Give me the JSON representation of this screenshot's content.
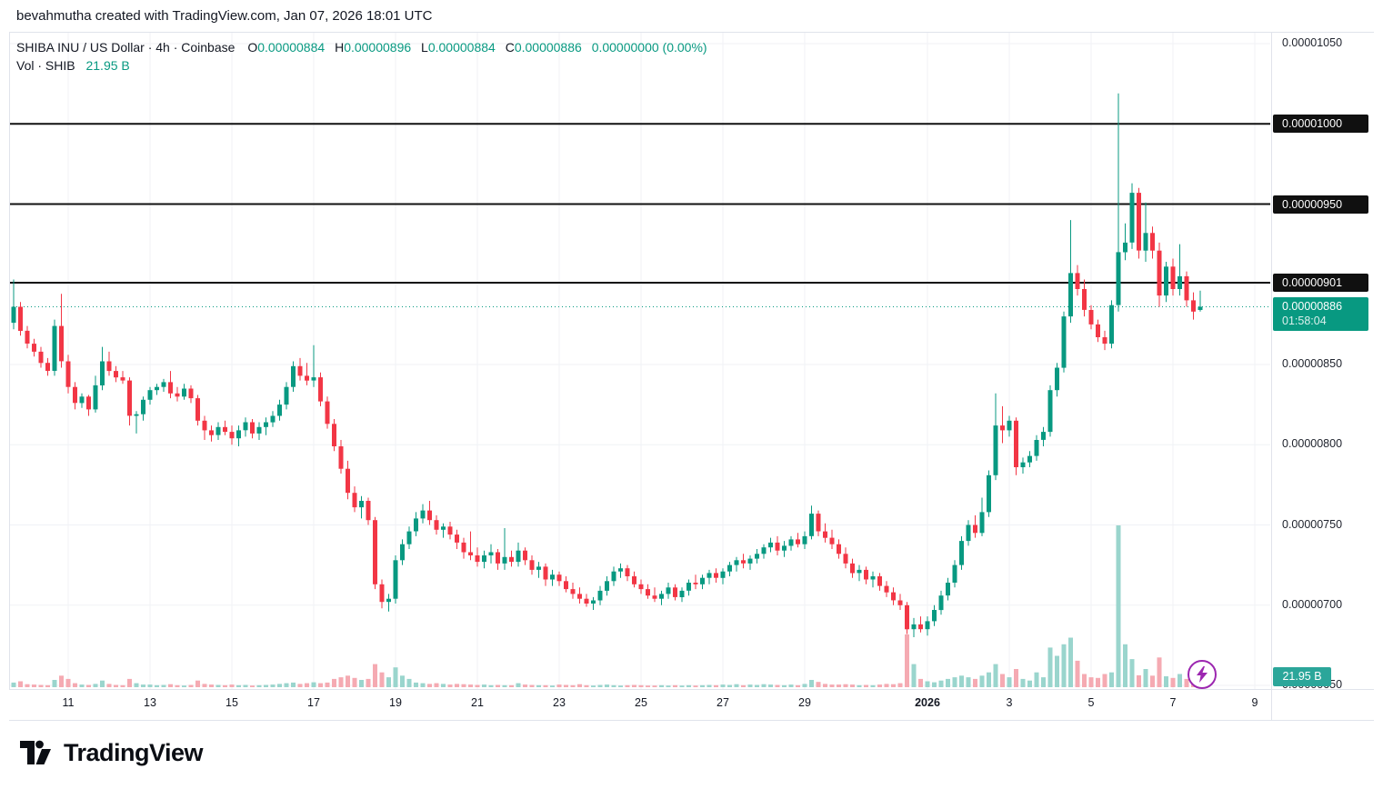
{
  "header": {
    "attribution": "bevahmutha created with TradingView.com, Jan 07, 2026 18:01 UTC"
  },
  "legend": {
    "title": "SHIBA INU / US Dollar · 4h · Coinbase",
    "ohlc": {
      "o_label": "O",
      "o": "0.00000884",
      "h_label": "H",
      "h": "0.00000896",
      "l_label": "L",
      "l": "0.00000884",
      "c_label": "C",
      "c": "0.00000886",
      "change": "0.00000000 (0.00%)"
    },
    "volume_label": "Vol · SHIB",
    "volume_value": "21.95 B"
  },
  "price_axis": {
    "last_price": "0.00000886",
    "countdown": "01:58:04",
    "volume_value": "21.95 B"
  },
  "footer": {
    "logo_text": "TradingView"
  },
  "colors": {
    "up": "#089981",
    "down": "#f23645",
    "vol_up": "#9ad5cd",
    "vol_down": "#f5aab2",
    "grid": "#f0f2f6",
    "border": "#e0e3eb",
    "line_black": "#101010",
    "label_box_bg": "#101010",
    "current_label_bg": "#089981",
    "volume_label_bg": "#2ba69a",
    "purple": "#9c27b0",
    "text": "#131722"
  },
  "chart_data": {
    "type": "candlestick",
    "title": "SHIBA INU / US Dollar",
    "exchange": "Coinbase",
    "interval": "4h",
    "price_unit": "1e-8 USD",
    "last_price": 886,
    "countdown": "01:58:04",
    "last_volume_b": 21.95,
    "y_axis_range": [
      650,
      1060
    ],
    "grid_prices": [
      1050,
      1000,
      950,
      900,
      850,
      800,
      750,
      700,
      650
    ],
    "y_ticks": [
      {
        "price": 1050,
        "label": "0.00001050"
      },
      {
        "price": 850,
        "label": "0.00000850"
      },
      {
        "price": 800,
        "label": "0.00000800"
      },
      {
        "price": 750,
        "label": "0.00000750"
      },
      {
        "price": 700,
        "label": "0.00000700"
      },
      {
        "price": 650,
        "label": "0.00000650"
      }
    ],
    "hlines": [
      {
        "price": 1000,
        "label": "0.00001000"
      },
      {
        "price": 950,
        "label": "0.00000950"
      },
      {
        "price": 901,
        "label": "0.00000901"
      }
    ],
    "x_ticks": [
      {
        "i": 8,
        "label": "11"
      },
      {
        "i": 20,
        "label": "13"
      },
      {
        "i": 32,
        "label": "15"
      },
      {
        "i": 44,
        "label": "17"
      },
      {
        "i": 56,
        "label": "19"
      },
      {
        "i": 68,
        "label": "21"
      },
      {
        "i": 80,
        "label": "23"
      },
      {
        "i": 92,
        "label": "25"
      },
      {
        "i": 104,
        "label": "27"
      },
      {
        "i": 116,
        "label": "29"
      },
      {
        "i": 134,
        "label": "2026",
        "bold": true
      },
      {
        "i": 146,
        "label": "3"
      },
      {
        "i": 158,
        "label": "5"
      },
      {
        "i": 170,
        "label": "7"
      },
      {
        "i": 182,
        "label": "9"
      }
    ],
    "candles": [
      [
        876,
        903,
        872,
        886
      ],
      [
        886,
        889,
        868,
        871
      ],
      [
        871,
        874,
        860,
        863
      ],
      [
        863,
        866,
        855,
        858
      ],
      [
        858,
        861,
        848,
        851
      ],
      [
        851,
        854,
        843,
        846
      ],
      [
        846,
        878,
        843,
        874
      ],
      [
        874,
        894,
        848,
        852
      ],
      [
        852,
        856,
        832,
        836
      ],
      [
        836,
        839,
        822,
        826
      ],
      [
        826,
        832,
        823,
        830
      ],
      [
        830,
        831,
        818,
        822
      ],
      [
        822,
        843,
        820,
        837
      ],
      [
        837,
        861,
        834,
        852
      ],
      [
        852,
        858,
        843,
        846
      ],
      [
        846,
        849,
        839,
        842
      ],
      [
        842,
        846,
        838,
        840
      ],
      [
        840,
        842,
        812,
        818
      ],
      [
        818,
        821,
        807,
        819
      ],
      [
        819,
        830,
        815,
        828
      ],
      [
        828,
        836,
        825,
        834
      ],
      [
        834,
        838,
        831,
        836
      ],
      [
        836,
        841,
        833,
        839
      ],
      [
        839,
        846,
        829,
        832
      ],
      [
        832,
        836,
        827,
        830
      ],
      [
        830,
        838,
        828,
        835
      ],
      [
        835,
        837,
        826,
        829
      ],
      [
        829,
        831,
        812,
        815
      ],
      [
        815,
        818,
        803,
        809
      ],
      [
        809,
        812,
        802,
        806
      ],
      [
        806,
        814,
        803,
        811
      ],
      [
        811,
        815,
        806,
        808
      ],
      [
        808,
        812,
        800,
        804
      ],
      [
        804,
        812,
        799,
        809
      ],
      [
        809,
        817,
        805,
        814
      ],
      [
        814,
        816,
        804,
        807
      ],
      [
        807,
        814,
        803,
        811
      ],
      [
        811,
        817,
        806,
        814
      ],
      [
        814,
        821,
        811,
        818
      ],
      [
        818,
        828,
        815,
        825
      ],
      [
        825,
        839,
        822,
        836
      ],
      [
        836,
        852,
        833,
        849
      ],
      [
        849,
        854,
        840,
        843
      ],
      [
        843,
        851,
        837,
        840
      ],
      [
        840,
        862,
        836,
        842
      ],
      [
        842,
        845,
        824,
        827
      ],
      [
        827,
        830,
        810,
        813
      ],
      [
        813,
        816,
        796,
        799
      ],
      [
        799,
        803,
        782,
        785
      ],
      [
        785,
        790,
        766,
        770
      ],
      [
        770,
        774,
        758,
        761
      ],
      [
        761,
        768,
        754,
        765
      ],
      [
        765,
        767,
        750,
        753
      ],
      [
        753,
        755,
        710,
        713
      ],
      [
        713,
        716,
        698,
        702
      ],
      [
        702,
        707,
        696,
        704
      ],
      [
        704,
        731,
        701,
        728
      ],
      [
        728,
        741,
        725,
        738
      ],
      [
        738,
        749,
        735,
        746
      ],
      [
        746,
        758,
        743,
        754
      ],
      [
        754,
        763,
        751,
        759
      ],
      [
        759,
        765,
        750,
        753
      ],
      [
        753,
        756,
        744,
        747
      ],
      [
        747,
        751,
        742,
        749
      ],
      [
        749,
        752,
        741,
        744
      ],
      [
        744,
        747,
        735,
        739
      ],
      [
        739,
        742,
        729,
        733
      ],
      [
        733,
        746,
        728,
        731
      ],
      [
        731,
        736,
        724,
        727
      ],
      [
        727,
        734,
        723,
        731
      ],
      [
        731,
        738,
        726,
        733
      ],
      [
        733,
        735,
        722,
        726
      ],
      [
        726,
        748,
        722,
        730
      ],
      [
        730,
        734,
        724,
        727
      ],
      [
        727,
        739,
        724,
        734
      ],
      [
        734,
        736,
        725,
        728
      ],
      [
        728,
        731,
        719,
        722
      ],
      [
        722,
        727,
        717,
        724
      ],
      [
        724,
        726,
        712,
        716
      ],
      [
        716,
        722,
        712,
        719
      ],
      [
        719,
        721,
        712,
        715
      ],
      [
        715,
        718,
        708,
        710
      ],
      [
        710,
        714,
        704,
        707
      ],
      [
        707,
        711,
        701,
        704
      ],
      [
        704,
        707,
        699,
        701
      ],
      [
        701,
        705,
        697,
        703
      ],
      [
        703,
        712,
        700,
        709
      ],
      [
        709,
        718,
        706,
        715
      ],
      [
        715,
        724,
        712,
        721
      ],
      [
        721,
        726,
        717,
        723
      ],
      [
        723,
        725,
        715,
        718
      ],
      [
        718,
        721,
        711,
        713
      ],
      [
        713,
        716,
        707,
        710
      ],
      [
        710,
        713,
        704,
        706
      ],
      [
        706,
        711,
        702,
        704
      ],
      [
        704,
        709,
        700,
        707
      ],
      [
        707,
        714,
        704,
        711
      ],
      [
        711,
        713,
        703,
        705
      ],
      [
        705,
        711,
        702,
        709
      ],
      [
        709,
        716,
        706,
        714
      ],
      [
        714,
        719,
        710,
        713
      ],
      [
        713,
        719,
        710,
        717
      ],
      [
        717,
        722,
        713,
        720
      ],
      [
        720,
        723,
        714,
        717
      ],
      [
        717,
        723,
        713,
        721
      ],
      [
        721,
        727,
        718,
        725
      ],
      [
        725,
        730,
        721,
        728
      ],
      [
        728,
        732,
        723,
        726
      ],
      [
        726,
        731,
        722,
        729
      ],
      [
        729,
        735,
        726,
        732
      ],
      [
        732,
        738,
        729,
        736
      ],
      [
        736,
        742,
        733,
        739
      ],
      [
        739,
        743,
        731,
        734
      ],
      [
        734,
        740,
        730,
        737
      ],
      [
        737,
        743,
        734,
        741
      ],
      [
        741,
        745,
        736,
        738
      ],
      [
        738,
        746,
        735,
        743
      ],
      [
        743,
        762,
        741,
        757
      ],
      [
        757,
        759,
        743,
        746
      ],
      [
        746,
        751,
        739,
        742
      ],
      [
        742,
        747,
        735,
        738
      ],
      [
        738,
        741,
        729,
        732
      ],
      [
        732,
        736,
        723,
        726
      ],
      [
        726,
        729,
        717,
        720
      ],
      [
        720,
        725,
        715,
        722
      ],
      [
        722,
        724,
        713,
        716
      ],
      [
        716,
        721,
        711,
        718
      ],
      [
        718,
        720,
        709,
        712
      ],
      [
        712,
        715,
        705,
        708
      ],
      [
        708,
        711,
        700,
        703
      ],
      [
        703,
        707,
        697,
        700
      ],
      [
        700,
        702,
        682,
        685
      ],
      [
        685,
        692,
        680,
        688
      ],
      [
        688,
        693,
        683,
        685
      ],
      [
        685,
        693,
        681,
        690
      ],
      [
        690,
        700,
        687,
        697
      ],
      [
        697,
        709,
        694,
        706
      ],
      [
        706,
        717,
        703,
        714
      ],
      [
        714,
        728,
        711,
        725
      ],
      [
        725,
        743,
        722,
        740
      ],
      [
        740,
        753,
        737,
        750
      ],
      [
        750,
        756,
        742,
        745
      ],
      [
        745,
        767,
        743,
        758
      ],
      [
        758,
        784,
        755,
        781
      ],
      [
        781,
        832,
        778,
        812
      ],
      [
        812,
        824,
        801,
        809
      ],
      [
        809,
        818,
        805,
        815
      ],
      [
        815,
        817,
        781,
        786
      ],
      [
        786,
        792,
        782,
        789
      ],
      [
        789,
        796,
        786,
        793
      ],
      [
        793,
        806,
        790,
        803
      ],
      [
        803,
        811,
        799,
        808
      ],
      [
        808,
        837,
        805,
        834
      ],
      [
        834,
        851,
        830,
        848
      ],
      [
        848,
        883,
        845,
        880
      ],
      [
        880,
        940,
        876,
        907
      ],
      [
        907,
        912,
        893,
        897
      ],
      [
        897,
        903,
        880,
        884
      ],
      [
        884,
        887,
        872,
        875
      ],
      [
        875,
        878,
        864,
        867
      ],
      [
        867,
        871,
        859,
        863
      ],
      [
        863,
        890,
        860,
        887
      ],
      [
        887,
        1019,
        883,
        920
      ],
      [
        920,
        938,
        915,
        926
      ],
      [
        926,
        963,
        922,
        957
      ],
      [
        957,
        960,
        916,
        921
      ],
      [
        921,
        951,
        914,
        932
      ],
      [
        932,
        936,
        916,
        921
      ],
      [
        921,
        926,
        886,
        893
      ],
      [
        893,
        914,
        889,
        911
      ],
      [
        911,
        916,
        893,
        897
      ],
      [
        897,
        925,
        893,
        905
      ],
      [
        905,
        908,
        886,
        890
      ],
      [
        890,
        895,
        878,
        883
      ],
      [
        884,
        896,
        883,
        886
      ]
    ],
    "volumes_b": [
      14,
      18,
      9,
      8,
      7,
      6,
      22,
      35,
      25,
      12,
      8,
      7,
      10,
      20,
      10,
      7,
      6,
      25,
      12,
      8,
      8,
      6,
      7,
      9,
      6,
      5,
      7,
      20,
      10,
      8,
      7,
      6,
      8,
      6,
      7,
      5,
      6,
      7,
      8,
      10,
      12,
      14,
      10,
      12,
      15,
      12,
      14,
      25,
      30,
      35,
      28,
      22,
      25,
      70,
      45,
      30,
      60,
      35,
      25,
      14,
      12,
      10,
      12,
      10,
      8,
      10,
      9,
      8,
      7,
      8,
      6,
      7,
      6,
      6,
      12,
      8,
      7,
      6,
      6,
      5,
      8,
      7,
      6,
      9,
      6,
      5,
      7,
      8,
      6,
      5,
      6,
      7,
      6,
      5,
      5,
      6,
      5,
      6,
      5,
      6,
      5,
      6,
      7,
      6,
      8,
      7,
      9,
      6,
      8,
      7,
      9,
      8,
      7,
      6,
      8,
      6,
      10,
      22,
      16,
      10,
      8,
      8,
      9,
      8,
      6,
      7,
      6,
      8,
      10,
      9,
      12,
      160,
      70,
      25,
      18,
      15,
      20,
      25,
      30,
      35,
      30,
      25,
      35,
      45,
      70,
      40,
      30,
      55,
      25,
      20,
      45,
      30,
      120,
      95,
      130,
      150,
      80,
      40,
      30,
      28,
      40,
      45,
      490,
      130,
      85,
      36,
      55,
      35,
      90,
      33,
      28,
      40,
      25,
      20,
      22
    ]
  }
}
